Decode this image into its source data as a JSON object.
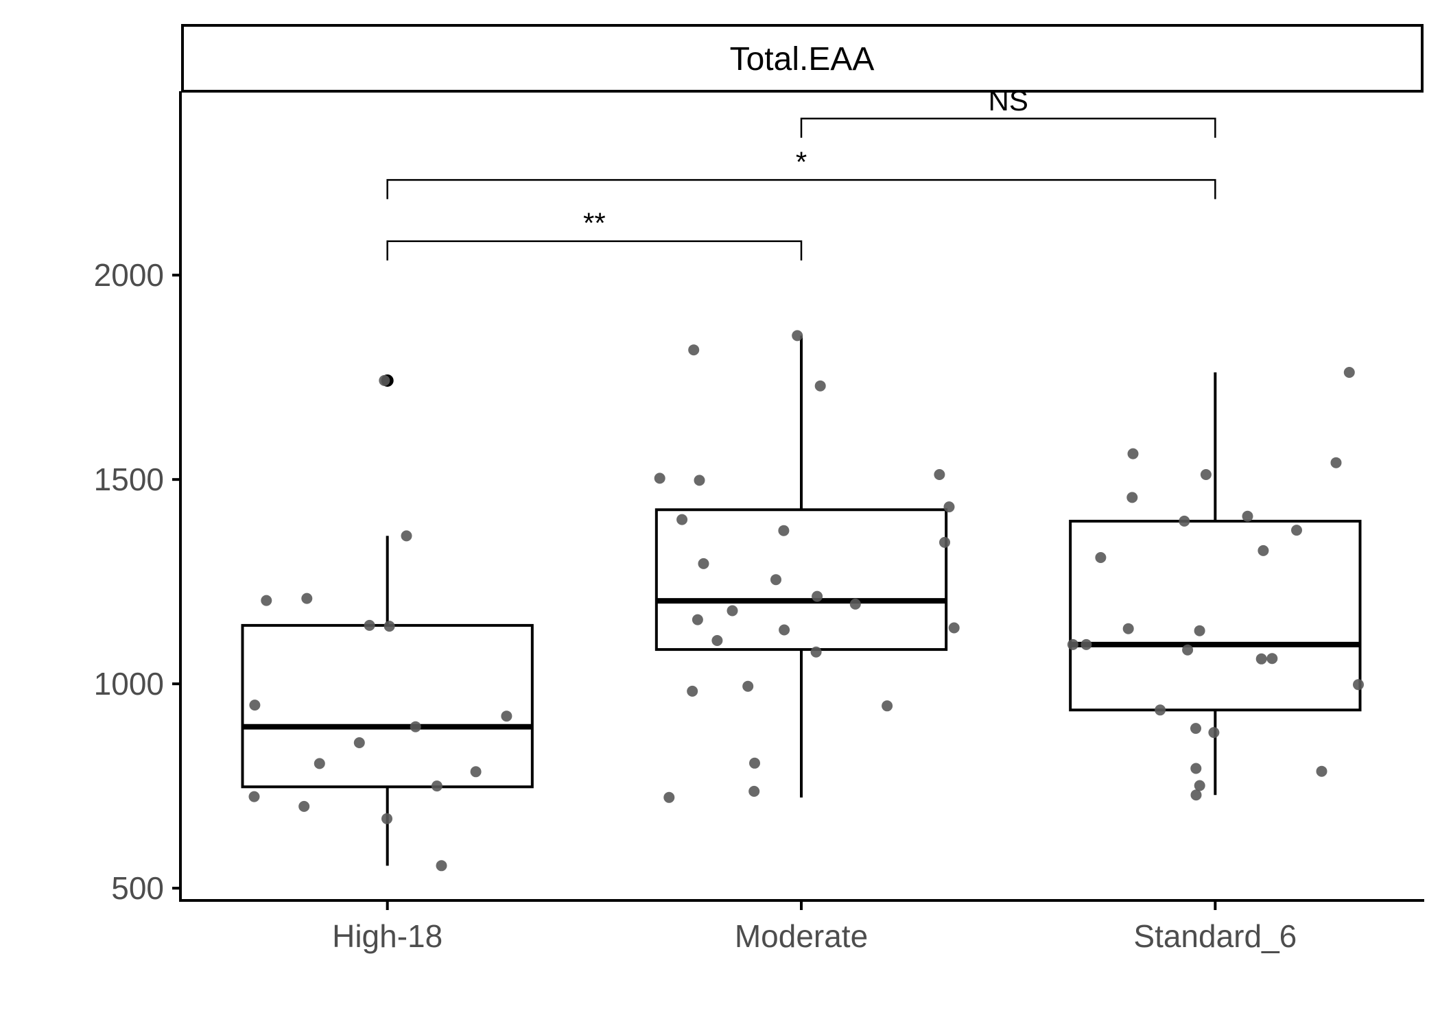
{
  "chart_data": {
    "type": "boxplot",
    "facet_label": "Total.EAA",
    "xlabel": "",
    "ylabel": "",
    "ylim": [
      470,
      2450
    ],
    "yticks": [
      500,
      1000,
      1500,
      2000
    ],
    "grid": false,
    "legend": "none",
    "categories": [
      "High-18",
      "Moderate",
      "Standard_6"
    ],
    "boxes": [
      {
        "category": "High-18",
        "min": 555,
        "q1": 748,
        "median": 895,
        "q3": 1143,
        "max": 1362,
        "outliers": [
          1742
        ]
      },
      {
        "category": "Moderate",
        "min": 722,
        "q1": 1084,
        "median": 1203,
        "q3": 1426,
        "max": 1852,
        "outliers": []
      },
      {
        "category": "Standard_6",
        "min": 728,
        "q1": 936,
        "median": 1096,
        "q3": 1398,
        "max": 1762,
        "outliers": []
      }
    ],
    "points": [
      {
        "category": "High-18",
        "values": [
          1742,
          1362,
          1204,
          1209,
          1143,
          1141,
          948,
          921,
          895,
          856,
          805,
          785,
          750,
          724,
          670,
          700,
          555
        ]
      },
      {
        "category": "Moderate",
        "values": [
          1817,
          1729,
          1852,
          1498,
          1503,
          1512,
          1433,
          1402,
          1375,
          1346,
          1294,
          1255,
          1214,
          1195,
          1179,
          1157,
          1137,
          1132,
          1106,
          1078,
          994,
          982,
          946,
          806,
          737,
          722
        ]
      },
      {
        "category": "Standard_6",
        "values": [
          1762,
          1563,
          1541,
          1512,
          1456,
          1410,
          1398,
          1376,
          1326,
          1309,
          1135,
          1130,
          1096,
          1096,
          1083,
          1062,
          1061,
          998,
          936,
          891,
          881,
          793,
          786,
          751,
          728
        ]
      }
    ],
    "comparisons": [
      {
        "groups": [
          "High-18",
          "Moderate"
        ],
        "label": "**",
        "y": 2083
      },
      {
        "groups": [
          "High-18",
          "Standard_6"
        ],
        "label": "*",
        "y": 2233
      },
      {
        "groups": [
          "Moderate",
          "Standard_6"
        ],
        "label": "NS",
        "y": 2383
      }
    ],
    "colors": {
      "points": "#595959",
      "box": "#000000",
      "axis": "#000000",
      "tick_text": "#4d4d4d"
    }
  }
}
